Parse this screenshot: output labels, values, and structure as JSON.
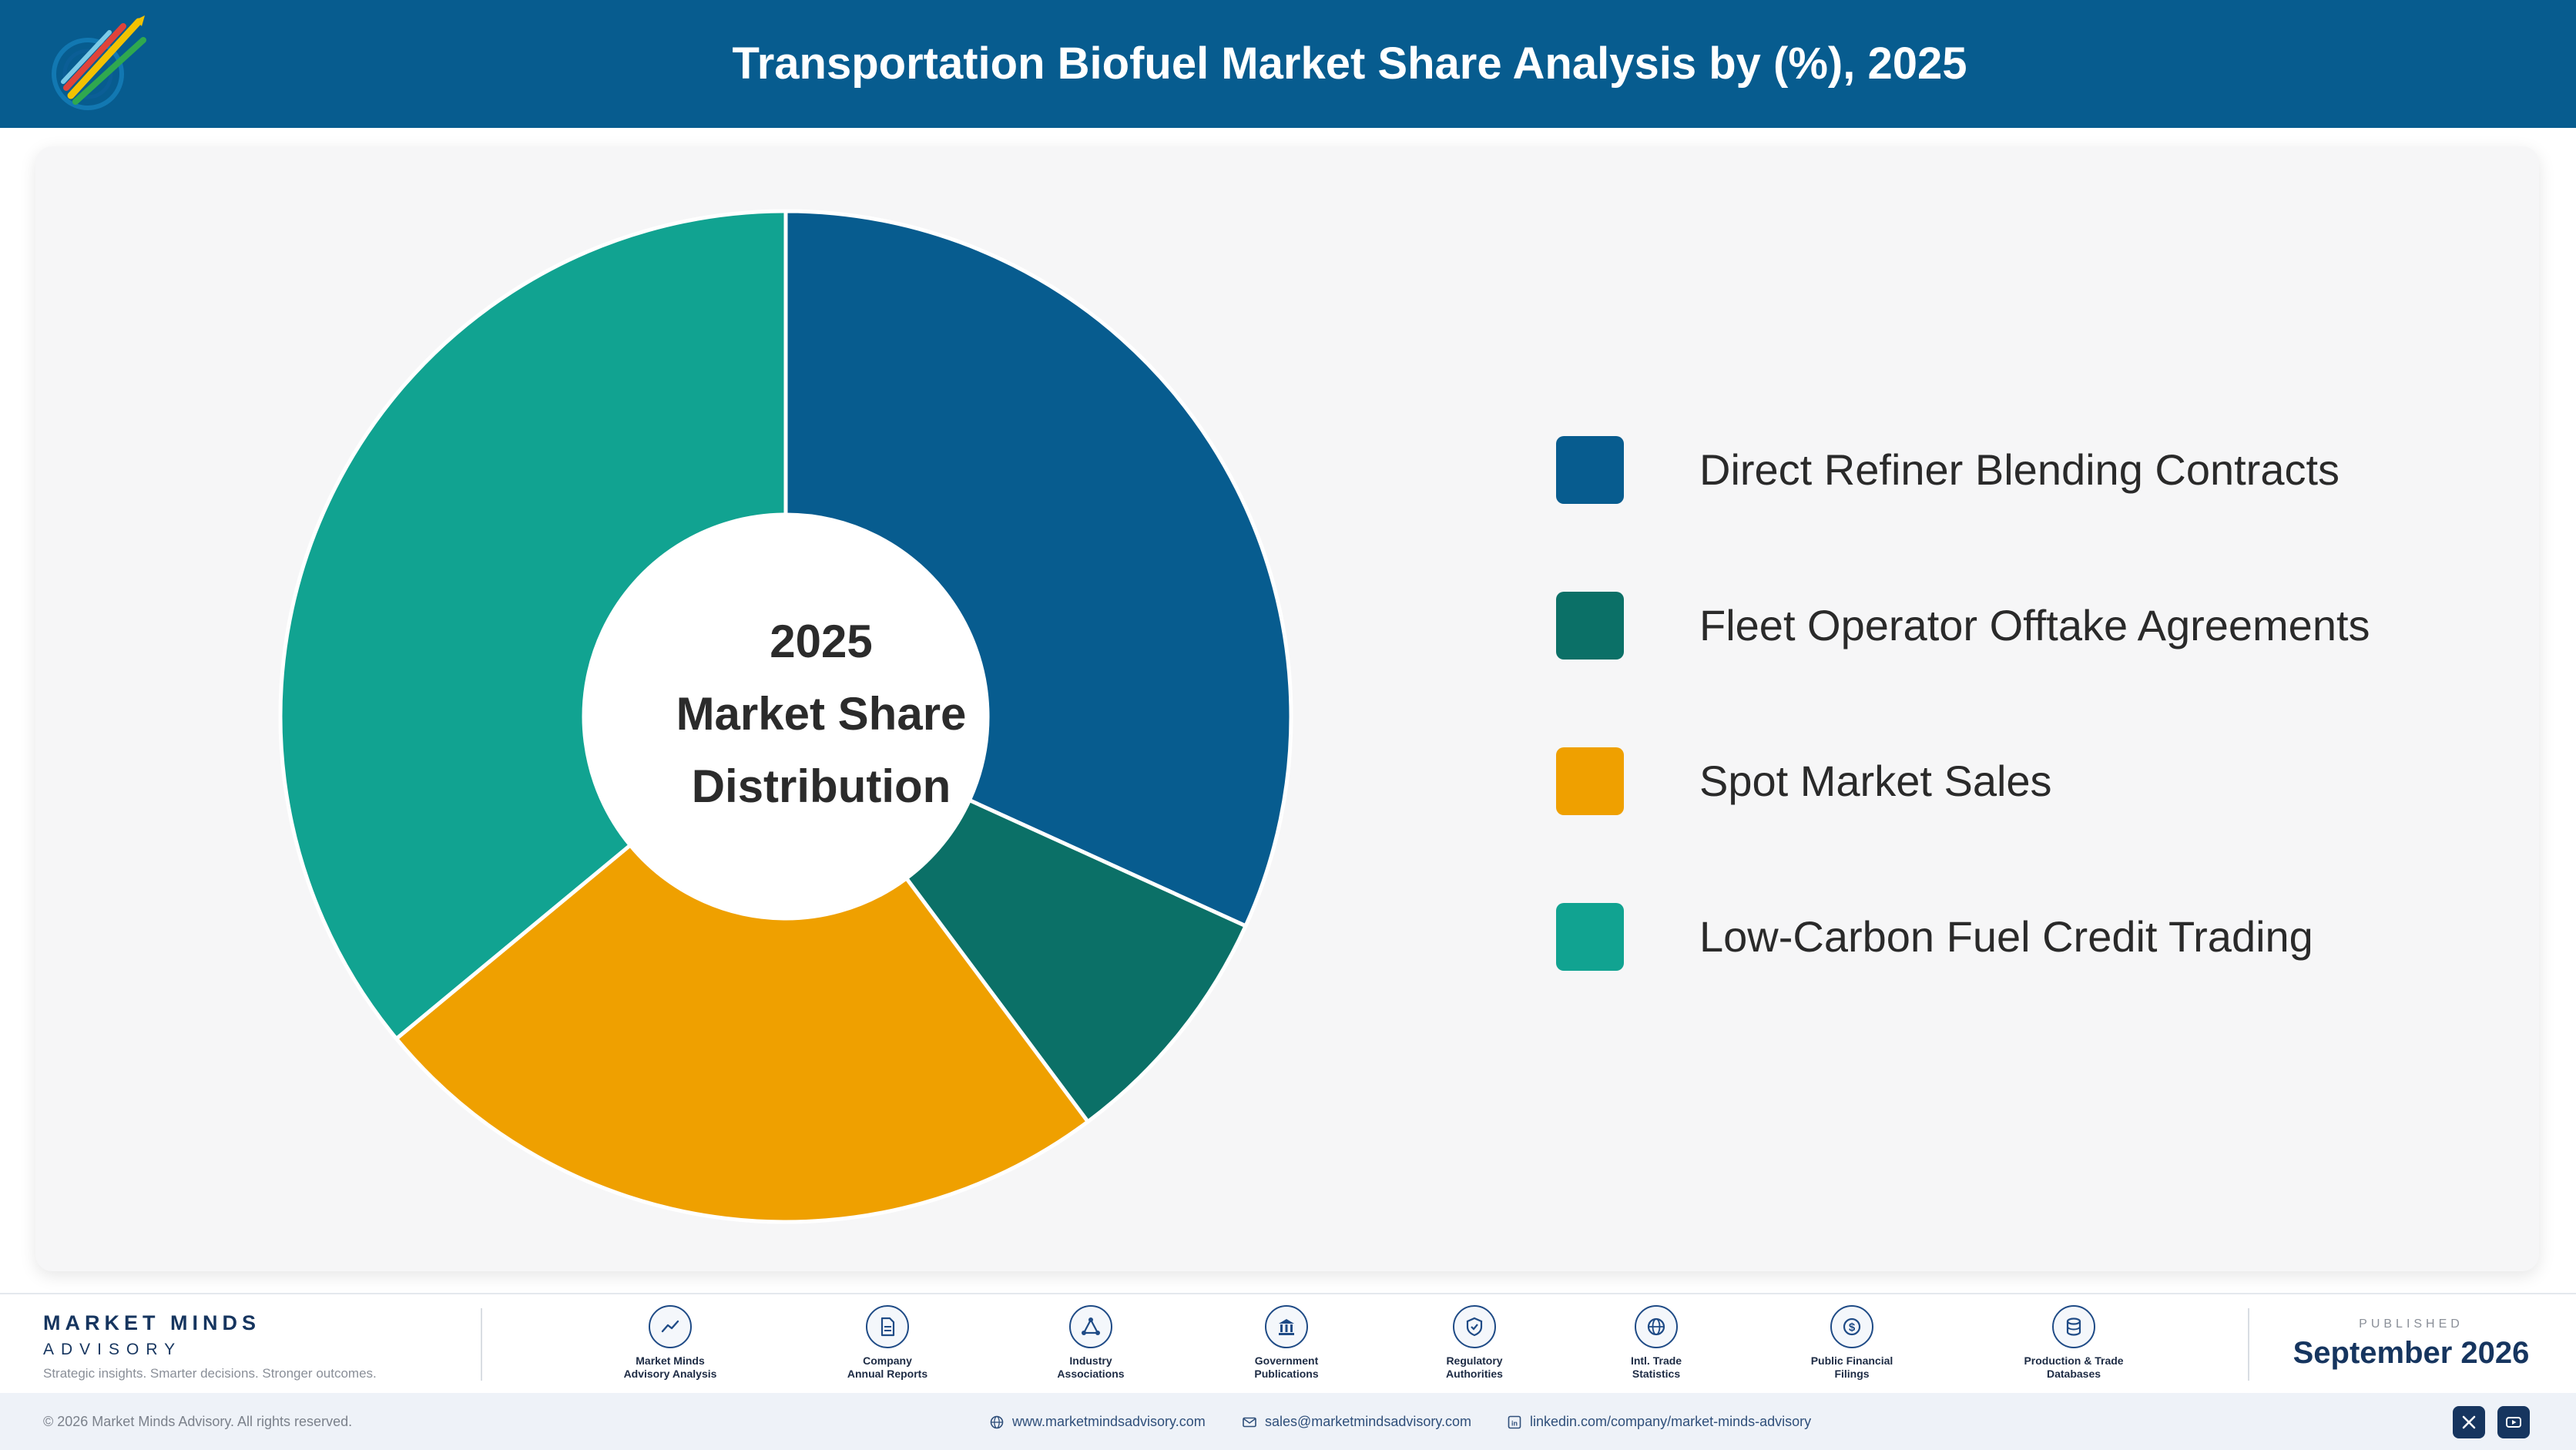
{
  "header": {
    "title": "Transportation Biofuel Market Share Analysis by (%), 2025"
  },
  "chart_data": {
    "type": "pie",
    "donut": true,
    "center_label": [
      "2025",
      "Market Share",
      "Distribution"
    ],
    "categories": [
      "Direct Refiner Blending Contracts",
      "Fleet Operator Offtake Agreements",
      "Spot Market Sales",
      "Low-Carbon Fuel Credit Trading"
    ],
    "values": [
      31.8,
      8.0,
      24.2,
      36.0
    ],
    "colors": [
      "#075c8f",
      "#0b7067",
      "#efa000",
      "#11a391"
    ],
    "legend_position": "right"
  },
  "footer": {
    "brand_name": "MARKET MINDS",
    "brand_sub": "ADVISORY",
    "tagline": "Strategic insights. Smarter decisions. Stronger outcomes.",
    "sources": [
      {
        "icon": "trend-chart-icon",
        "label1": "Market Minds",
        "label2": "Advisory Analysis"
      },
      {
        "icon": "document-icon",
        "label1": "Company",
        "label2": "Annual Reports"
      },
      {
        "icon": "network-icon",
        "label1": "Industry",
        "label2": "Associations"
      },
      {
        "icon": "government-building-icon",
        "label1": "Government",
        "label2": "Publications"
      },
      {
        "icon": "shield-check-icon",
        "label1": "Regulatory",
        "label2": "Authorities"
      },
      {
        "icon": "globe-icon",
        "label1": "Intl. Trade",
        "label2": "Statistics"
      },
      {
        "icon": "dollar-coin-icon",
        "label1": "Public Financial",
        "label2": "Filings"
      },
      {
        "icon": "database-icon",
        "label1": "Production & Trade",
        "label2": "Databases"
      }
    ],
    "published_caption": "PUBLISHED",
    "published_date": "September 2026"
  },
  "bottom": {
    "copyright": "© 2026 Market Minds Advisory. All rights reserved.",
    "website": "www.marketmindsadvisory.com",
    "email": "sales@marketmindsadvisory.com",
    "linkedin": "linkedin.com/company/market-minds-advisory"
  },
  "colors": {
    "header_bg": "#075c8f",
    "brand_navy": "#16355f",
    "card_bg": "#f6f6f7"
  }
}
